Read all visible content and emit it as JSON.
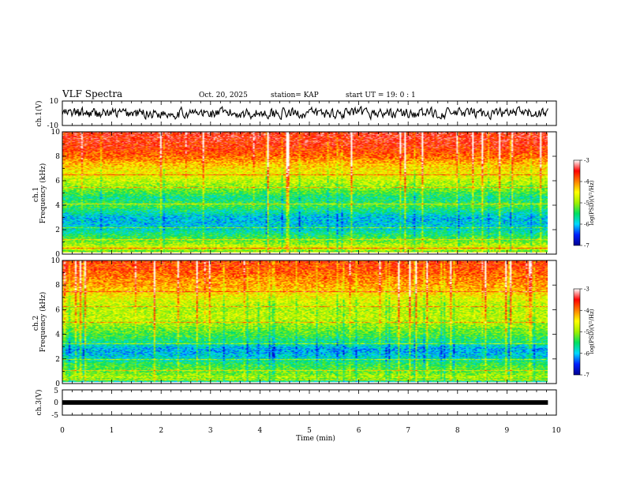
{
  "header": {
    "title": "VLF Spectra",
    "date": "Oct. 20, 2025",
    "station": "station= KAP",
    "start": "start  UT  =    19: 0  : 1"
  },
  "chart_data": [
    {
      "id": "ch1-waveform",
      "type": "line",
      "ylabel": "ch.1(V)",
      "ylim": [
        -10,
        10
      ],
      "yticks": [
        "10",
        "-10"
      ],
      "xlim": [
        0,
        10
      ],
      "data_end": 9.83,
      "samples": 560,
      "amplitude": 3.5,
      "series_color": "#000000"
    },
    {
      "id": "ch1-spectrogram",
      "type": "heatmap",
      "ylabel": "ch.1\nFrequency (kHz)",
      "ylim": [
        0,
        10
      ],
      "yticks": [
        "0",
        "2",
        "4",
        "6",
        "8",
        "10"
      ],
      "xlim": [
        0,
        10
      ],
      "data_end": 9.83,
      "colorbar": {
        "label": "log(PSD)(V²/Hz)",
        "range": [
          -7,
          -3
        ],
        "ticks": [
          "-3",
          "-4",
          "-5",
          "-6",
          "-7"
        ],
        "colors": [
          "#000090",
          "#0020ff",
          "#00d8ff",
          "#00e060",
          "#a0f000",
          "#ffff00",
          "#ff8000",
          "#ff0000",
          "#ffffff"
        ]
      },
      "band_profile": [
        {
          "f": 0.0,
          "v": -5.9
        },
        {
          "f": 0.5,
          "v": -4.6
        },
        {
          "f": 1.0,
          "v": -5.1
        },
        {
          "f": 1.6,
          "v": -5.5
        },
        {
          "f": 2.2,
          "v": -5.9
        },
        {
          "f": 3.0,
          "v": -6.0
        },
        {
          "f": 3.6,
          "v": -5.6
        },
        {
          "f": 4.0,
          "v": -5.3
        },
        {
          "f": 4.6,
          "v": -5.6
        },
        {
          "f": 5.2,
          "v": -5.2
        },
        {
          "f": 5.8,
          "v": -4.9
        },
        {
          "f": 6.5,
          "v": -4.6
        },
        {
          "f": 7.3,
          "v": -4.3
        },
        {
          "f": 8.0,
          "v": -3.9
        },
        {
          "f": 9.0,
          "v": -3.6
        },
        {
          "f": 10.0,
          "v": -3.5
        }
      ],
      "lines_khz": [
        0.2,
        0.5,
        1.2,
        2.2,
        4.1,
        5.5,
        6.5
      ]
    },
    {
      "id": "ch2-spectrogram",
      "type": "heatmap",
      "ylabel": "ch.2\nFrequency (kHz)",
      "ylim": [
        0,
        10
      ],
      "yticks": [
        "0",
        "2",
        "4",
        "6",
        "8",
        "10"
      ],
      "xlim": [
        0,
        10
      ],
      "data_end": 9.83,
      "colorbar": {
        "label": "log(PSD)(V²/Hz)",
        "range": [
          -7,
          -3
        ],
        "ticks": [
          "-3",
          "-4",
          "-5",
          "-6",
          "-7"
        ],
        "colors": [
          "#000090",
          "#0020ff",
          "#00d8ff",
          "#00e060",
          "#a0f000",
          "#ffff00",
          "#ff8000",
          "#ff0000",
          "#ffffff"
        ]
      },
      "band_profile": [
        {
          "f": 0.0,
          "v": -6.2
        },
        {
          "f": 0.5,
          "v": -4.9
        },
        {
          "f": 1.0,
          "v": -5.2
        },
        {
          "f": 1.6,
          "v": -5.4
        },
        {
          "f": 2.2,
          "v": -5.9
        },
        {
          "f": 2.8,
          "v": -6.1
        },
        {
          "f": 3.4,
          "v": -5.6
        },
        {
          "f": 4.0,
          "v": -5.3
        },
        {
          "f": 4.8,
          "v": -5.0
        },
        {
          "f": 5.4,
          "v": -4.8
        },
        {
          "f": 6.2,
          "v": -4.9
        },
        {
          "f": 7.0,
          "v": -4.6
        },
        {
          "f": 7.8,
          "v": -4.2
        },
        {
          "f": 8.6,
          "v": -4.0
        },
        {
          "f": 9.3,
          "v": -3.8
        },
        {
          "f": 10.0,
          "v": -3.7
        }
      ],
      "lines_khz": [
        0.3,
        1.1,
        2.0,
        3.3,
        5.0,
        6.3,
        7.5
      ]
    },
    {
      "id": "ch3-waveform",
      "type": "line",
      "ylabel": "ch.3(V)",
      "ylim": [
        -5,
        5
      ],
      "yticks": [
        "5",
        "0",
        "-5"
      ],
      "xlim": [
        0,
        10
      ],
      "data_end": 9.83,
      "level": 0,
      "amplitude": 0.45,
      "series_color": "#000000"
    }
  ],
  "time_axis": {
    "label": "Time (min)",
    "ticks": [
      "0",
      "1",
      "2",
      "3",
      "4",
      "5",
      "6",
      "7",
      "8",
      "9",
      "10"
    ]
  }
}
